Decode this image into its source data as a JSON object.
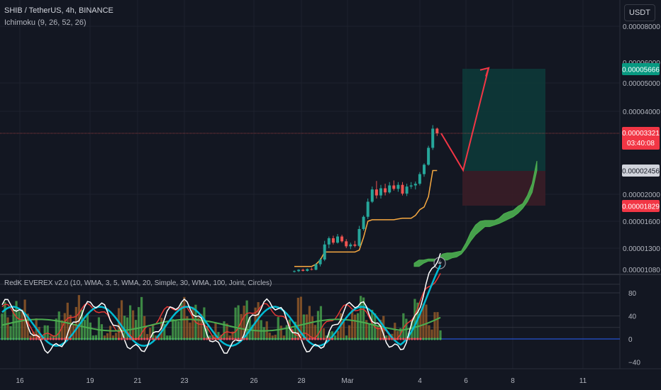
{
  "header": {
    "symbol": "SHIB / TetherUS, 4h, BINANCE",
    "indicator": "Ichimoku (9, 26, 52, 26)",
    "currency_button": "USDT",
    "lower_indicator": "RedK EVEREX v2.0 (10, WMA, 3, 5, WMA, 20, Simple, 30, WMA, 100, Joint, Circles)"
  },
  "price_axis": {
    "ticks": [
      "0.00008000",
      "0.00006000",
      "0.00005000",
      "0.00004000",
      "0.00002000",
      "0.00001600",
      "0.00001300",
      "0.00001080"
    ],
    "labels": {
      "target": "0.00005666",
      "current": "0.00003321",
      "countdown": "03:40:08",
      "entry": "0.00002456",
      "stop": "0.00001829"
    }
  },
  "osc_axis": {
    "ticks": [
      "80",
      "40",
      "0",
      "−40"
    ]
  },
  "time_axis": {
    "ticks": [
      "16",
      "19",
      "21",
      "23",
      "26",
      "28",
      "Mar",
      "4",
      "6",
      "8",
      "11"
    ]
  },
  "colors": {
    "background": "#131722",
    "up": "#26a69a",
    "down": "#ef5350",
    "kijun": "#f7a941",
    "cloud": "#4caf50",
    "profit_zone": "#0d3b3a",
    "loss_zone": "#3a1d27",
    "arrow": "#f23645",
    "osc_white": "#ffffff",
    "osc_cyan": "#00bcd4",
    "osc_green": "#4caf50",
    "osc_red": "#e53935",
    "osc_orange": "#f7a941",
    "zero_line": "#2962ff"
  },
  "chart_data": [
    {
      "type": "candlestick",
      "title": "SHIB / TetherUS, 4h, BINANCE",
      "scale": "log",
      "ylim": [
        1.06e-05,
        8.3e-06
      ],
      "x_ticks": [
        "16",
        "19",
        "21",
        "23",
        "26",
        "28",
        "Mar",
        "4",
        "6",
        "8",
        "11"
      ],
      "candles": [
        {
          "o": 1.072e-05,
          "h": 1.085e-05,
          "l": 1.066e-05,
          "c": 1.078e-05
        },
        {
          "o": 1.078e-05,
          "h": 1.095e-05,
          "l": 1.07e-05,
          "c": 1.09e-05
        },
        {
          "o": 1.09e-05,
          "h": 1.1e-05,
          "l": 1.075e-05,
          "c": 1.08e-05
        },
        {
          "o": 1.08e-05,
          "h": 1.102e-05,
          "l": 1.074e-05,
          "c": 1.096e-05
        },
        {
          "o": 1.096e-05,
          "h": 1.11e-05,
          "l": 1.085e-05,
          "c": 1.09e-05
        },
        {
          "o": 1.09e-05,
          "h": 1.15e-05,
          "l": 1.086e-05,
          "c": 1.14e-05
        },
        {
          "o": 1.14e-05,
          "h": 1.2e-05,
          "l": 1.12e-05,
          "c": 1.185e-05
        },
        {
          "o": 1.185e-05,
          "h": 1.38e-05,
          "l": 1.17e-05,
          "c": 1.34e-05
        },
        {
          "o": 1.34e-05,
          "h": 1.43e-05,
          "l": 1.3e-05,
          "c": 1.41e-05
        },
        {
          "o": 1.41e-05,
          "h": 1.44e-05,
          "l": 1.34e-05,
          "c": 1.36e-05
        },
        {
          "o": 1.36e-05,
          "h": 1.46e-05,
          "l": 1.35e-05,
          "c": 1.43e-05
        },
        {
          "o": 1.43e-05,
          "h": 1.45e-05,
          "l": 1.36e-05,
          "c": 1.375e-05
        },
        {
          "o": 1.375e-05,
          "h": 1.4e-05,
          "l": 1.3e-05,
          "c": 1.32e-05
        },
        {
          "o": 1.32e-05,
          "h": 1.36e-05,
          "l": 1.29e-05,
          "c": 1.34e-05
        },
        {
          "o": 1.34e-05,
          "h": 1.38e-05,
          "l": 1.31e-05,
          "c": 1.325e-05
        },
        {
          "o": 1.325e-05,
          "h": 1.56e-05,
          "l": 1.315e-05,
          "c": 1.52e-05
        },
        {
          "o": 1.52e-05,
          "h": 1.7e-05,
          "l": 1.5e-05,
          "c": 1.68e-05
        },
        {
          "o": 1.68e-05,
          "h": 1.95e-05,
          "l": 1.65e-05,
          "c": 1.9e-05
        },
        {
          "o": 1.9e-05,
          "h": 2.15e-05,
          "l": 1.88e-05,
          "c": 2.1e-05
        },
        {
          "o": 2.1e-05,
          "h": 2.25e-05,
          "l": 1.95e-05,
          "c": 2e-05
        },
        {
          "o": 2e-05,
          "h": 2.18e-05,
          "l": 1.95e-05,
          "c": 2.12e-05
        },
        {
          "o": 2.12e-05,
          "h": 2.2e-05,
          "l": 2e-05,
          "c": 2.05e-05
        },
        {
          "o": 2.05e-05,
          "h": 2.23e-05,
          "l": 2.03e-05,
          "c": 2.17e-05
        },
        {
          "o": 2.17e-05,
          "h": 2.26e-05,
          "l": 2.08e-05,
          "c": 2.11e-05
        },
        {
          "o": 2.11e-05,
          "h": 2.23e-05,
          "l": 2.06e-05,
          "c": 2.18e-05
        },
        {
          "o": 2.18e-05,
          "h": 2.23e-05,
          "l": 2e-05,
          "c": 2.03e-05
        },
        {
          "o": 2.03e-05,
          "h": 2.2e-05,
          "l": 1.99e-05,
          "c": 2.15e-05
        },
        {
          "o": 2.15e-05,
          "h": 2.23e-05,
          "l": 2.11e-05,
          "c": 2.17e-05
        },
        {
          "o": 2.17e-05,
          "h": 2.24e-05,
          "l": 2.1e-05,
          "c": 2.2e-05
        },
        {
          "o": 2.2e-05,
          "h": 2.42e-05,
          "l": 2.17e-05,
          "c": 2.38e-05
        },
        {
          "o": 2.38e-05,
          "h": 2.6e-05,
          "l": 2.33e-05,
          "c": 2.57e-05
        },
        {
          "o": 2.57e-05,
          "h": 3e-05,
          "l": 2.55e-05,
          "c": 2.95e-05
        },
        {
          "o": 2.95e-05,
          "h": 3.55e-05,
          "l": 2.9e-05,
          "c": 3.45e-05
        },
        {
          "o": 3.45e-05,
          "h": 3.48e-05,
          "l": 3.25e-05,
          "c": 3.321e-05
        }
      ],
      "kijun_sen": [
        1.12e-05,
        1.12e-05,
        1.12e-05,
        1.12e-05,
        1.12e-05,
        1.14e-05,
        1.18e-05,
        1.26e-05,
        1.26e-05,
        1.26e-05,
        1.26e-05,
        1.26e-05,
        1.26e-05,
        1.26e-05,
        1.26e-05,
        1.28e-05,
        1.42e-05,
        1.62e-05,
        1.64e-05,
        1.64e-05,
        1.64e-05,
        1.64e-05,
        1.64e-05,
        1.64e-05,
        1.65e-05,
        1.66e-05,
        1.66e-05,
        1.66e-05,
        1.7e-05,
        1.78e-05,
        1.82e-05,
        1.98e-05,
        2.45e-05,
        2.45e-05
      ],
      "cloud_upper": [
        1.15e-05,
        1.18e-05,
        1.18e-05,
        1.19e-05,
        1.19e-05,
        1.19e-05,
        1.24e-05,
        1.25e-05,
        1.25e-05,
        1.26e-05,
        1.27e-05,
        1.36e-05,
        1.48e-05,
        1.57e-05,
        1.62e-05,
        1.63e-05,
        1.63e-05,
        1.63e-05,
        1.66e-05,
        1.72e-05,
        1.75e-05,
        1.77e-05,
        1.83e-05,
        1.87e-05,
        2e-05,
        2.2e-05,
        2.65e-05
      ],
      "cloud_lower": [
        1.12e-05,
        1.12e-05,
        1.15e-05,
        1.17e-05,
        1.17e-05,
        1.17e-05,
        1.18e-05,
        1.18e-05,
        1.2e-05,
        1.21e-05,
        1.24e-05,
        1.3e-05,
        1.38e-05,
        1.45e-05,
        1.5e-05,
        1.55e-05,
        1.55e-05,
        1.57e-05,
        1.59e-05,
        1.62e-05,
        1.65e-05,
        1.68e-05,
        1.73e-05,
        1.8e-05,
        1.9e-05,
        2.05e-05,
        2.45e-05
      ],
      "position": {
        "entry": 2.456e-05,
        "target": 5.666e-05,
        "stop": 1.829e-05
      },
      "projection": [
        3.321e-05,
        2.456e-05,
        5.666e-05
      ]
    },
    {
      "type": "histogram+line",
      "title": "RedK EVEREX v2.0 (10, WMA, 3, 5, WMA, 20, Simple, 30, WMA, 100, Joint, Circles)",
      "ylim": [
        -48,
        100
      ],
      "y_ticks": [
        "80",
        "40",
        "0",
        "−40"
      ]
    }
  ]
}
